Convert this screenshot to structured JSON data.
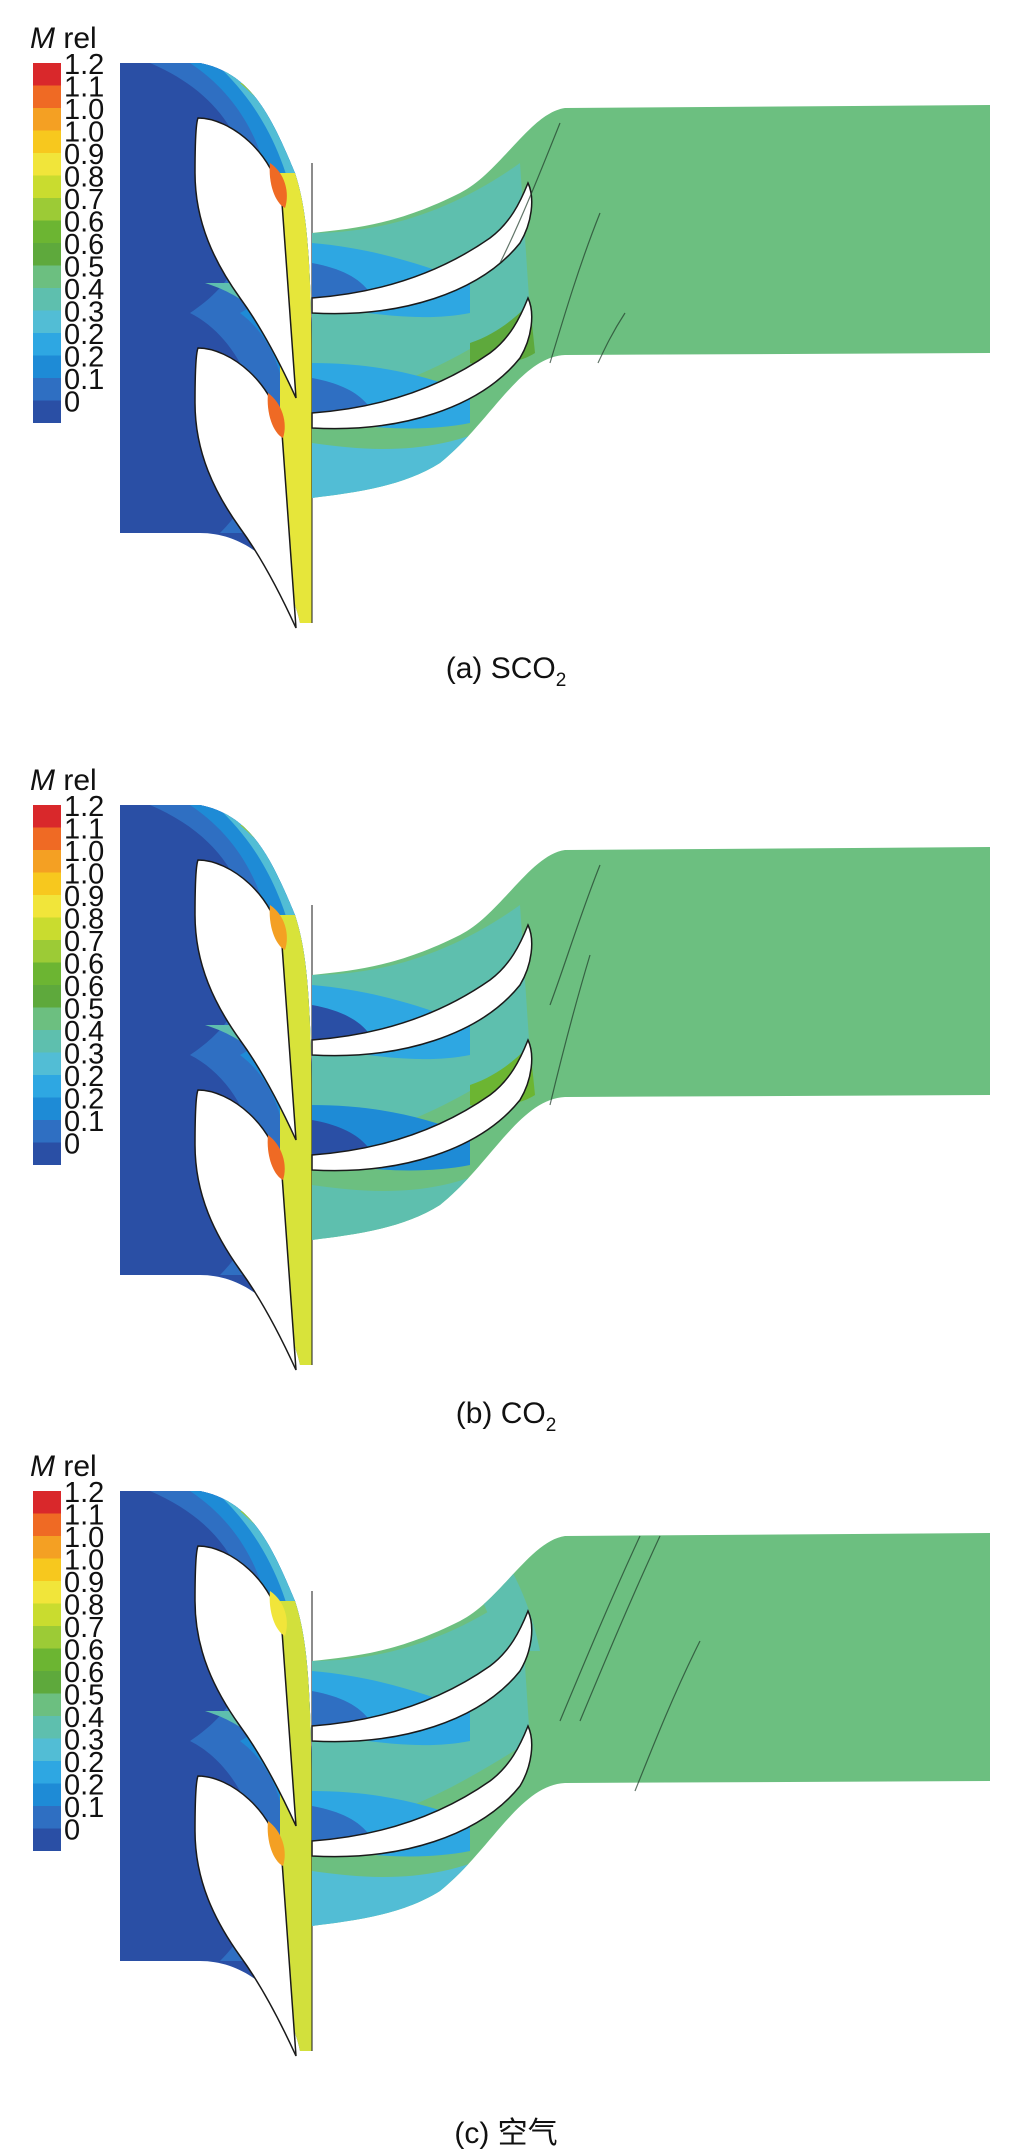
{
  "colorbar": {
    "title_symbol": "M",
    "title_suffix": " rel",
    "tick_labels": [
      "1.2",
      "1.1",
      "1.0",
      "1.0",
      "0.9",
      "0.8",
      "0.7",
      "0.6",
      "0.6",
      "0.5",
      "0.4",
      "0.3",
      "0.2",
      "0.2",
      "0.1",
      "0"
    ],
    "colors": [
      "#d9282b",
      "#ef6a24",
      "#f4a023",
      "#f7c81e",
      "#f1e53a",
      "#c9dc2f",
      "#9ccb36",
      "#6cb532",
      "#5ea93c",
      "#6cbf80",
      "#5ebfae",
      "#52bdd5",
      "#2ea7e2",
      "#1e8bd6",
      "#2f6fc2",
      "#2a4fa5"
    ]
  },
  "panels": [
    {
      "id": "a",
      "caption_prefix": "(a) ",
      "caption_main": "SCO",
      "caption_sub": "2"
    },
    {
      "id": "b",
      "caption_prefix": "(b) ",
      "caption_main": "CO",
      "caption_sub": "2"
    },
    {
      "id": "c",
      "caption_prefix": "(c) ",
      "caption_main": "空气",
      "caption_sub": ""
    }
  ]
}
